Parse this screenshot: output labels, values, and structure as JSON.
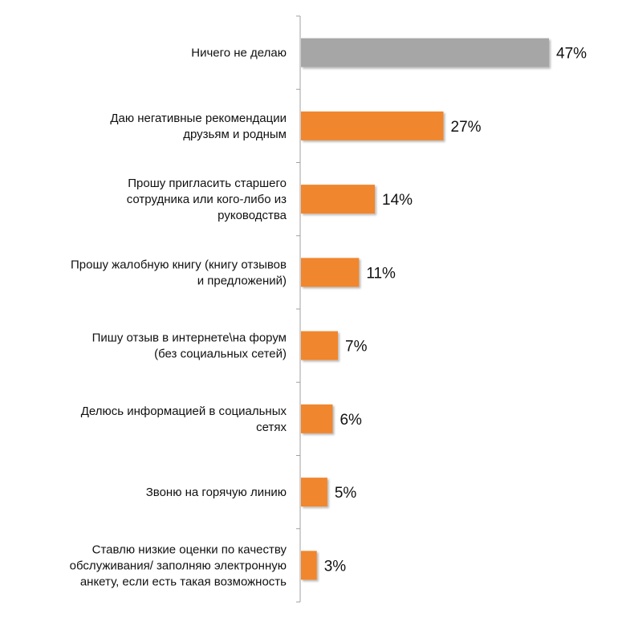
{
  "chart_data": {
    "type": "bar",
    "orientation": "horizontal",
    "categories": [
      "Ничего не делаю",
      "Даю негативные рекомендации друзьям и родным",
      "Прошу пригласить старшего сотрудника или кого-либо из руководства",
      "Прошу жалобную книгу (книгу отзывов и предложений)",
      "Пишу отзыв в интернете\\на форум (без социальных сетей)",
      "Делюсь информацией в социальных сетях",
      "Звоню на горячую линию",
      "Ставлю низкие оценки по качеству обслуживания/ заполняю электронную анкету, если есть такая возможность"
    ],
    "category_lines": [
      [
        "Ничего не делаю"
      ],
      [
        "Даю негативные рекомендации",
        "друзьям и родным"
      ],
      [
        "Прошу пригласить старшего",
        "сотрудника или кого-либо из",
        "руководства"
      ],
      [
        "Прошу жалобную книгу (книгу отзывов",
        "и предложений)"
      ],
      [
        "Пишу отзыв в интернете\\на форум",
        "(без социальных сетей)"
      ],
      [
        "Делюсь информацией в социальных",
        "сетях"
      ],
      [
        "Звоню на горячую линию"
      ],
      [
        "Ставлю низкие оценки по качеству",
        "обслуживания/ заполняю электронную",
        "анкету, если есть такая возможность"
      ]
    ],
    "values": [
      47,
      27,
      14,
      11,
      7,
      6,
      5,
      3
    ],
    "value_labels": [
      "47%",
      "27%",
      "14%",
      "11%",
      "7%",
      "6%",
      "5%",
      "3%"
    ],
    "title": "",
    "xlabel": "",
    "ylabel": "",
    "xlim": [
      0,
      50
    ],
    "grid": false,
    "legend": "none",
    "colors": {
      "highlight": "#a6a6a6",
      "bars": "#f0862e",
      "axis": "#a0a0a0"
    },
    "highlight_index": 0
  }
}
